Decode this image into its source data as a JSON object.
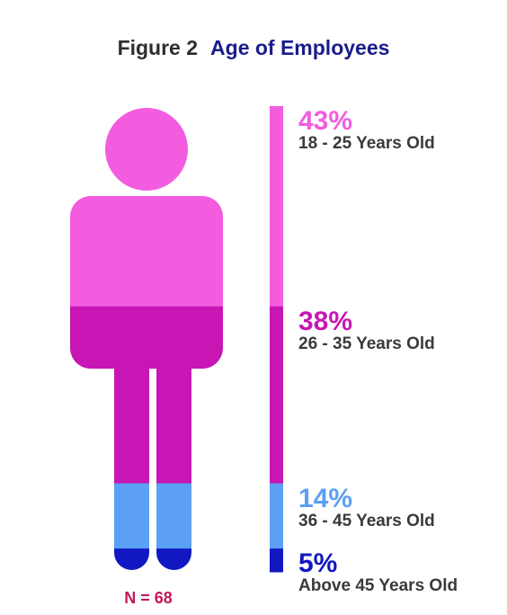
{
  "header": {
    "figure_label": "Figure 2",
    "title": "Age of Employees"
  },
  "footer": {
    "n_label": "N = 68"
  },
  "chart_data": {
    "type": "bar",
    "title": "Age of Employees",
    "categories": [
      "18 - 25 Years Old",
      "26 - 35 Years Old",
      "36 - 45 Years Old",
      "Above 45 Years Old"
    ],
    "values": [
      43,
      38,
      14,
      5
    ],
    "value_labels": [
      "43%",
      "38%",
      "14%",
      "5%"
    ],
    "colors": [
      "#f35cdf",
      "#c716b4",
      "#5ba0f4",
      "#1218c1"
    ],
    "sample_size": 68
  },
  "colors": {
    "title_dark": "#2e2e2e",
    "title_accent": "#1a1c8c",
    "n_label": "#c2185b",
    "label_text": "#3a3a3a"
  }
}
